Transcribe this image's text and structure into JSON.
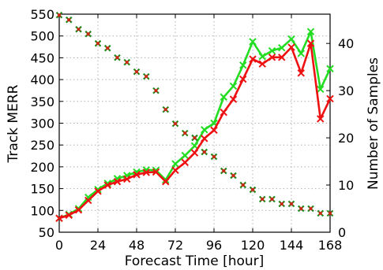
{
  "chart_data": {
    "type": "line",
    "title": "",
    "xlabel": "Forecast Time [hour]",
    "ylabel": "Track MERR",
    "y2label": "Number of Samples",
    "xlim": [
      0,
      168
    ],
    "ylim": [
      50,
      550
    ],
    "y2lim": [
      0,
      46.2
    ],
    "x_ticks": [
      0,
      24,
      48,
      72,
      96,
      120,
      144,
      168
    ],
    "y_ticks": [
      50,
      100,
      150,
      200,
      250,
      300,
      350,
      400,
      450,
      500,
      550
    ],
    "y2_ticks": [
      0,
      10,
      20,
      30,
      40
    ],
    "grid": true,
    "legend": "none",
    "x": [
      0,
      6,
      12,
      18,
      24,
      30,
      36,
      42,
      48,
      54,
      60,
      66,
      72,
      78,
      84,
      90,
      96,
      102,
      108,
      114,
      120,
      126,
      132,
      138,
      144,
      150,
      156,
      162,
      168
    ],
    "series": [
      {
        "color": "#22dd22",
        "marker": "x",
        "values": [
          82,
          91,
          104,
          130,
          148,
          162,
          173,
          180,
          188,
          193,
          192,
          170,
          207,
          226,
          248,
          285,
          300,
          360,
          385,
          433,
          487,
          453,
          466,
          473,
          493,
          460,
          510,
          378,
          425
        ]
      },
      {
        "color": "#ee1111",
        "marker": "x",
        "values": [
          82,
          89,
          101,
          123,
          144,
          158,
          166,
          172,
          182,
          187,
          188,
          166,
          192,
          210,
          232,
          265,
          284,
          325,
          355,
          401,
          447,
          436,
          451,
          451,
          474,
          415,
          483,
          310,
          356
        ]
      },
      {
        "axis": "right",
        "color": "#1a8c1a",
        "color2": "#ee1111",
        "marker": "x",
        "values": [
          46,
          45,
          43,
          42,
          40,
          39,
          37,
          36,
          34,
          33,
          30,
          26,
          23,
          21,
          20,
          17,
          16,
          13,
          12,
          10,
          9,
          7,
          7,
          6,
          6,
          5,
          5,
          4,
          4
        ]
      }
    ]
  }
}
